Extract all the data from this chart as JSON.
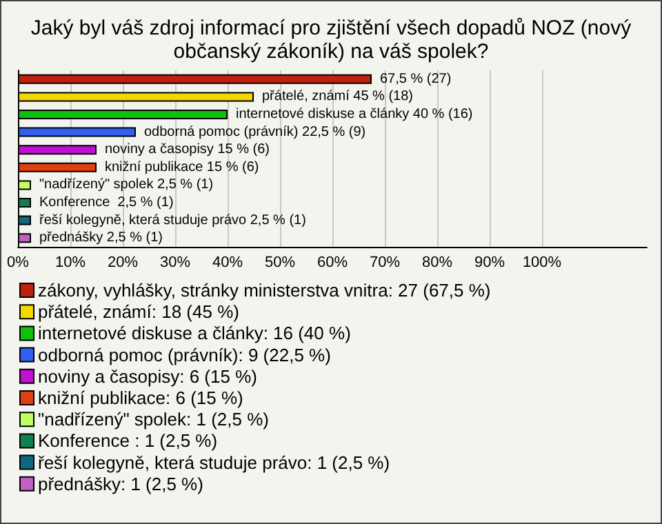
{
  "chart_data": {
    "type": "bar",
    "title": "Jaký byl váš zdroj informací pro zjištění všech dopadů NOZ (nový\nobčanský zákoník) na váš spolek?",
    "orientation": "horizontal",
    "stacked": true,
    "categories": [
      null,
      null,
      null,
      null,
      null,
      null,
      null,
      null,
      null,
      null
    ],
    "xlim": [
      0,
      120
    ],
    "xticks": [
      {
        "value": 0,
        "label": "0%"
      },
      {
        "value": 10,
        "label": "10%"
      },
      {
        "value": 20,
        "label": "20%"
      },
      {
        "value": 30,
        "label": "30%"
      },
      {
        "value": 40,
        "label": "40%"
      },
      {
        "value": 50,
        "label": "50%"
      },
      {
        "value": 60,
        "label": "60%"
      },
      {
        "value": 70,
        "label": "70%"
      },
      {
        "value": 80,
        "label": "80%"
      },
      {
        "value": 90,
        "label": "90%"
      },
      {
        "value": 100,
        "label": "100%"
      }
    ],
    "grid": "x",
    "legend": "bottom",
    "series": [
      {
        "name": "zákony, vyhlášky, stránky ministerstva vnitra: 27 (67,5 %)",
        "color": "#c0200f",
        "values": [
          67.5,
          null,
          null,
          null,
          null,
          null,
          null,
          null,
          null,
          null
        ],
        "value_labels": [
          "67,5 % (27)",
          null,
          null,
          null,
          null,
          null,
          null,
          null,
          null,
          null
        ]
      },
      {
        "name": "přátelé, známí: 18 (45 %)",
        "color": "#f0d800",
        "values": [
          null,
          45,
          null,
          null,
          null,
          null,
          null,
          null,
          null,
          null
        ],
        "value_labels": [
          null,
          "přátelé, známí 45 % (18)",
          null,
          null,
          null,
          null,
          null,
          null,
          null,
          null
        ]
      },
      {
        "name": "internetové diskuse a články: 16 (40 %)",
        "color": "#10c010",
        "values": [
          null,
          null,
          40,
          null,
          null,
          null,
          null,
          null,
          null,
          null
        ],
        "value_labels": [
          null,
          null,
          "internetové diskuse a články 40 % (16)",
          null,
          null,
          null,
          null,
          null,
          null,
          null
        ]
      },
      {
        "name": "odborná pomoc (právník): 9 (22,5 %)",
        "color": "#3060f0",
        "values": [
          null,
          null,
          null,
          22.5,
          null,
          null,
          null,
          null,
          null,
          null
        ],
        "value_labels": [
          null,
          null,
          null,
          "odborná pomoc (právník) 22,5 % (9)",
          null,
          null,
          null,
          null,
          null,
          null
        ]
      },
      {
        "name": "noviny a časopisy: 6 (15 %)",
        "color": "#c010d0",
        "values": [
          null,
          null,
          null,
          null,
          15,
          null,
          null,
          null,
          null,
          null
        ],
        "value_labels": [
          null,
          null,
          null,
          null,
          "noviny a časopisy 15 % (6)",
          null,
          null,
          null,
          null,
          null
        ]
      },
      {
        "name": "knižní publikace: 6 (15 %)",
        "color": "#e04010",
        "values": [
          null,
          null,
          null,
          null,
          null,
          15,
          null,
          null,
          null,
          null
        ],
        "value_labels": [
          null,
          null,
          null,
          null,
          null,
          "knižní publikace 15 % (6)",
          null,
          null,
          null,
          null
        ]
      },
      {
        "name": "\"nadřízený\" spolek: 1 (2,5 %)",
        "color": "#c0ff60",
        "values": [
          null,
          null,
          null,
          null,
          null,
          null,
          2.5,
          null,
          null,
          null
        ],
        "value_labels": [
          null,
          null,
          null,
          null,
          null,
          null,
          "\"nadřízený\" spolek 2,5 % (1)",
          null,
          null,
          null
        ]
      },
      {
        "name": "Konference : 1 (2,5 %)",
        "color": "#108050",
        "values": [
          null,
          null,
          null,
          null,
          null,
          null,
          null,
          2.5,
          null,
          null
        ],
        "value_labels": [
          null,
          null,
          null,
          null,
          null,
          null,
          null,
          "Konference  2,5 % (1)",
          null,
          null
        ]
      },
      {
        "name": "řeší kolegyně, která studuje právo: 1 (2,5 %)",
        "color": "#106880",
        "values": [
          null,
          null,
          null,
          null,
          null,
          null,
          null,
          null,
          2.5,
          null
        ],
        "value_labels": [
          null,
          null,
          null,
          null,
          null,
          null,
          null,
          null,
          "řeší kolegyně, která studuje právo 2,5 % (1)",
          null
        ]
      },
      {
        "name": "přednášky: 1 (2,5 %)",
        "color": "#c060c0",
        "values": [
          null,
          null,
          null,
          null,
          null,
          null,
          null,
          null,
          null,
          2.5
        ],
        "value_labels": [
          null,
          null,
          null,
          null,
          null,
          null,
          null,
          null,
          null,
          "přednášky 2,5 % (1)"
        ]
      }
    ]
  }
}
